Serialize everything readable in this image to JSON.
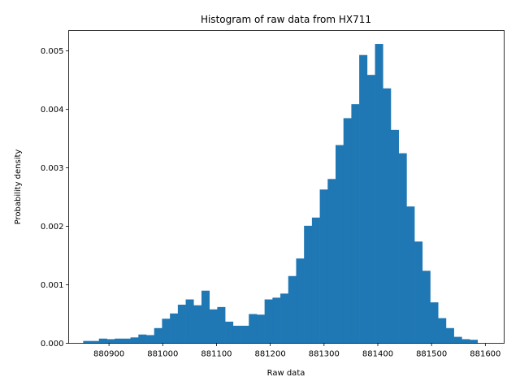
{
  "chart_data": {
    "type": "bar",
    "title": "Histogram of raw data from HX711",
    "xlabel": "Raw data",
    "ylabel": "Probability density",
    "xlim": [
      880825,
      881635
    ],
    "ylim": [
      0,
      0.00535
    ],
    "bin_start": 880852,
    "bin_width": 14.67,
    "values": [
      4e-05,
      4e-05,
      8e-05,
      7e-05,
      8e-05,
      8e-05,
      0.0001,
      0.00015,
      0.00014,
      0.00026,
      0.00042,
      0.00051,
      0.00066,
      0.00075,
      0.00065,
      0.0009,
      0.00058,
      0.00062,
      0.00037,
      0.0003,
      0.0003,
      0.0005,
      0.00049,
      0.00075,
      0.00078,
      0.00085,
      0.00115,
      0.00145,
      0.00201,
      0.00215,
      0.00263,
      0.00281,
      0.00339,
      0.00385,
      0.00409,
      0.00493,
      0.00459,
      0.00512,
      0.00436,
      0.00365,
      0.00325,
      0.00234,
      0.00174,
      0.00124,
      0.0007,
      0.00043,
      0.00026,
      0.00011,
      7e-05,
      6e-05
    ],
    "xticks": [
      880900,
      881000,
      881100,
      881200,
      881300,
      881400,
      881500,
      881600
    ],
    "xtick_labels": [
      "880900",
      "881000",
      "881100",
      "881200",
      "881300",
      "881400",
      "881500",
      "881600"
    ],
    "yticks": [
      0,
      0.001,
      0.002,
      0.003,
      0.004,
      0.005
    ],
    "ytick_labels": [
      "0.000",
      "0.001",
      "0.002",
      "0.003",
      "0.004",
      "0.005"
    ],
    "bar_color": "#1f77b4",
    "grid": false
  }
}
